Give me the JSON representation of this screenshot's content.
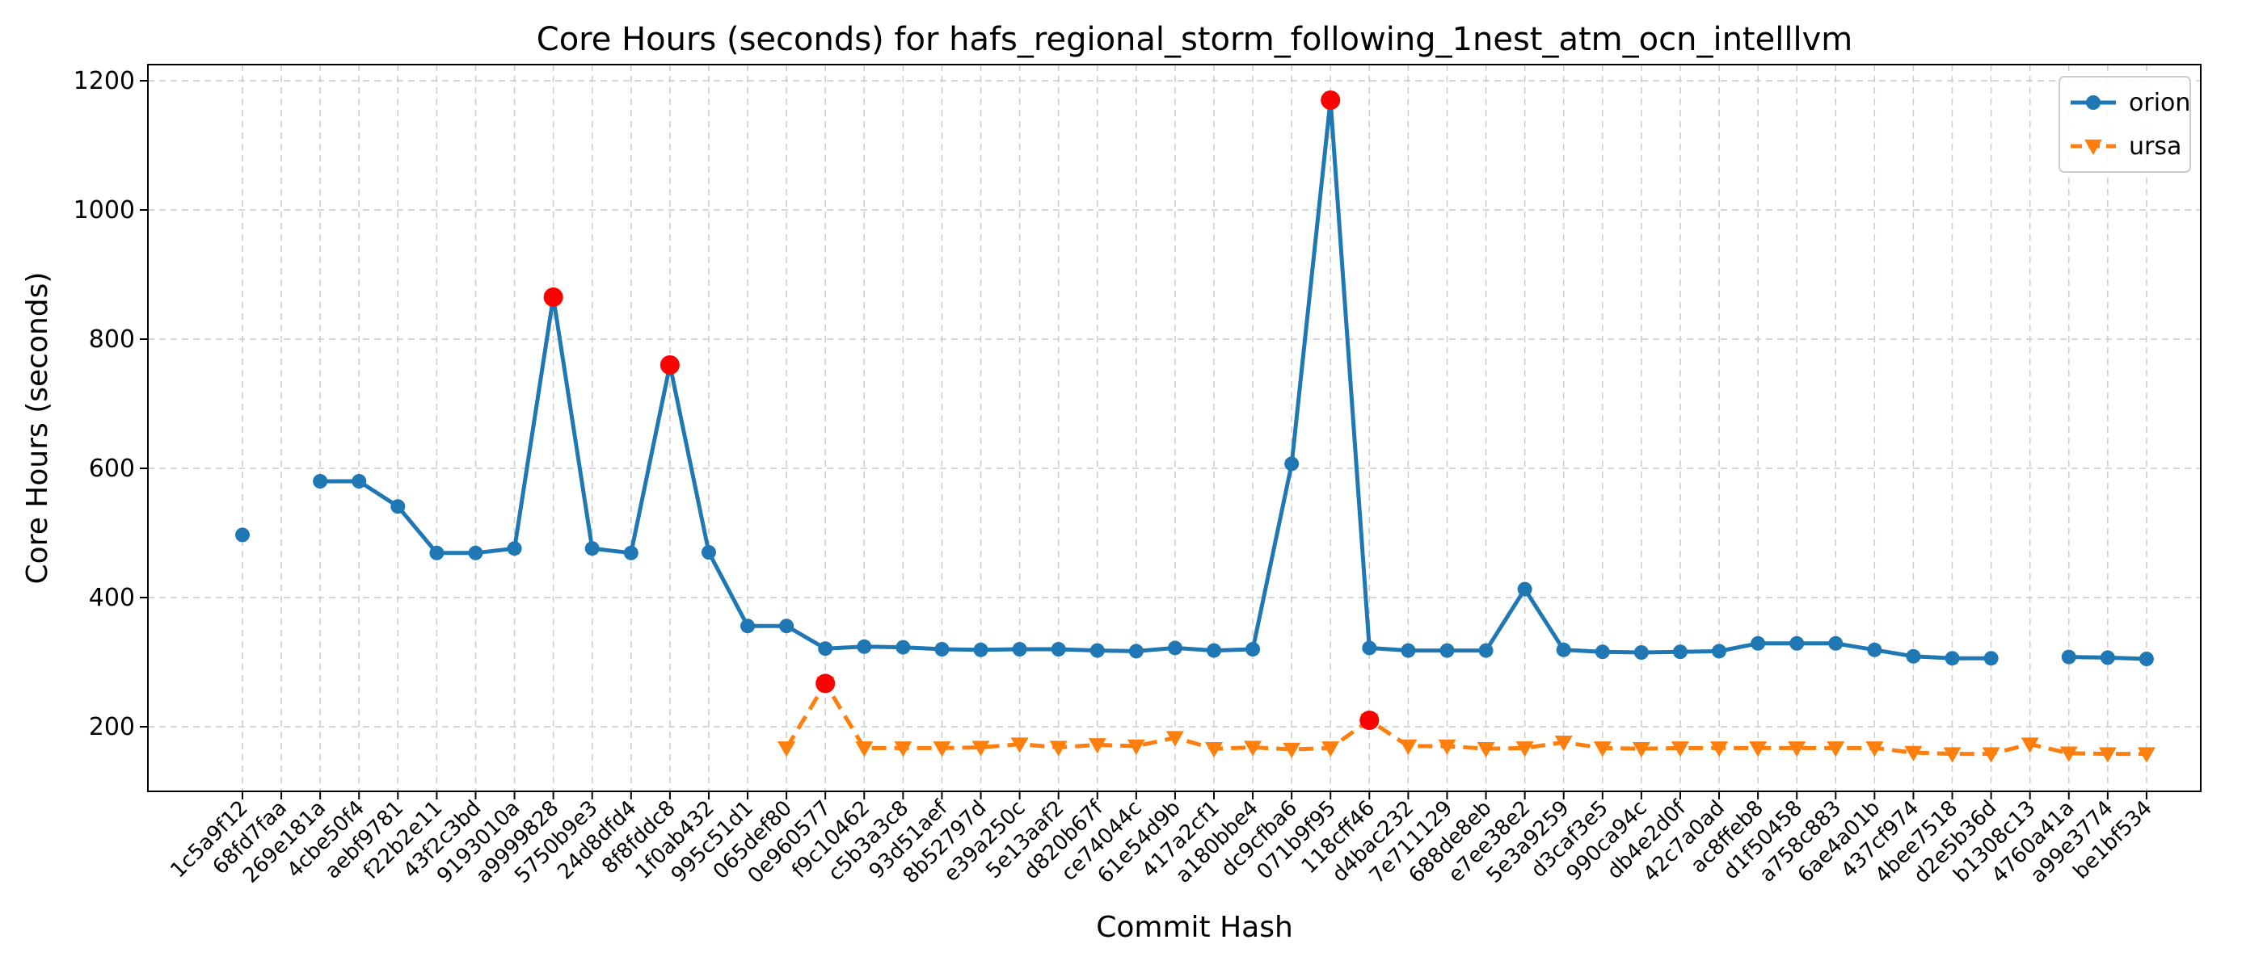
{
  "chart_data": {
    "type": "line",
    "title": "Core Hours (seconds) for hafs_regional_storm_following_1nest_atm_ocn_intelllvm",
    "xlabel": "Commit Hash",
    "ylabel": "Core Hours (seconds)",
    "ylim": [
      100,
      1225
    ],
    "yticks": [
      200,
      400,
      600,
      800,
      1000,
      1200
    ],
    "grid": true,
    "legend_position": "top-right",
    "categories": [
      "1c5a9f12",
      "68fd7faa",
      "269e181a",
      "4cbe50f4",
      "aebf9781",
      "f22b2e11",
      "43f2c3bd",
      "9193010a",
      "a9999828",
      "5750b9e3",
      "24d8dfd4",
      "8f8fddc8",
      "1f0ab432",
      "995c51d1",
      "065def80",
      "0e960577",
      "f9c10462",
      "c5b3a3c8",
      "93d51aef",
      "8b52797d",
      "e39a250c",
      "5e13aaf2",
      "d820b67f",
      "ce74044c",
      "61e54d9b",
      "417a2cf1",
      "a180bbe4",
      "dc9cfba6",
      "071b9f95",
      "118cff46",
      "d4bac232",
      "7e711129",
      "688de8eb",
      "e7ee38e2",
      "5e3a9259",
      "d3caf3e5",
      "990ca94c",
      "db4e2d0f",
      "42c7a0ad",
      "ac8ffeb8",
      "d1f50458",
      "a758c883",
      "6ae4a01b",
      "437cf974",
      "4bee7518",
      "d2e5b36d",
      "b1308c13",
      "4760a41a",
      "a99e3774",
      "be1bf534"
    ],
    "series": [
      {
        "name": "orion",
        "color": "#1f77b4",
        "style": "solid",
        "marker": "circle",
        "values": [
          497,
          null,
          580,
          580,
          541,
          469,
          469,
          476,
          865,
          476,
          469,
          760,
          470,
          356,
          356,
          321,
          324,
          323,
          320,
          319,
          320,
          320,
          318,
          317,
          322,
          318,
          320,
          607,
          1170,
          322,
          318,
          318,
          318,
          413,
          319,
          316,
          315,
          316,
          317,
          329,
          329,
          329,
          319,
          309,
          306,
          306,
          null,
          308,
          307,
          305
        ]
      },
      {
        "name": "ursa",
        "color": "#ff7f0e",
        "style": "dashed",
        "marker": "triangle-down",
        "values": [
          null,
          null,
          null,
          null,
          null,
          null,
          null,
          null,
          null,
          null,
          null,
          null,
          null,
          null,
          167,
          267,
          167,
          167,
          167,
          168,
          173,
          168,
          172,
          170,
          183,
          166,
          168,
          165,
          167,
          210,
          170,
          170,
          166,
          167,
          176,
          167,
          166,
          167,
          167,
          167,
          167,
          167,
          167,
          160,
          158,
          158,
          173,
          159,
          158,
          158
        ]
      }
    ],
    "highlight_color": "#ff0000",
    "highlights": [
      {
        "series": "orion",
        "category": "a9999828",
        "value": 865
      },
      {
        "series": "orion",
        "category": "8f8fddc8",
        "value": 760
      },
      {
        "series": "orion",
        "category": "071b9f95",
        "value": 1170
      },
      {
        "series": "ursa",
        "category": "0e960577",
        "value": 267
      },
      {
        "series": "ursa",
        "category": "118cff46",
        "value": 210
      }
    ]
  }
}
